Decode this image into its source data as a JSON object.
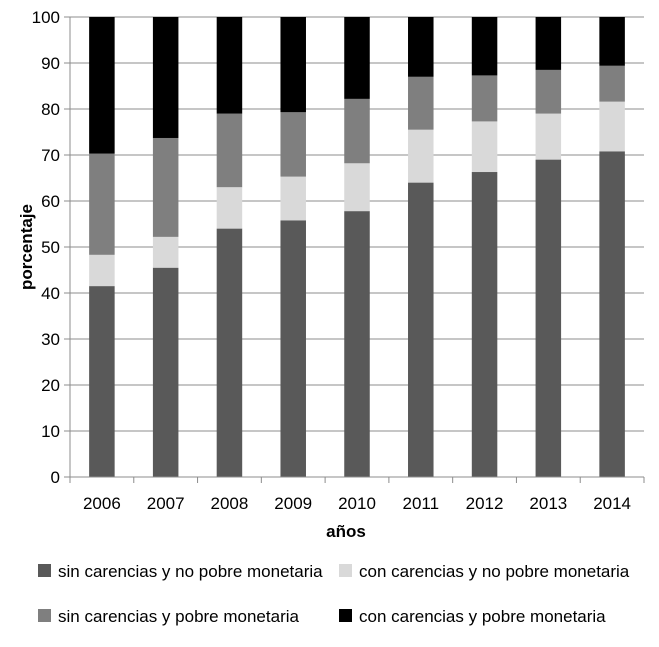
{
  "chart_data": {
    "type": "bar",
    "stacked": true,
    "categories": [
      "2006",
      "2007",
      "2008",
      "2009",
      "2010",
      "2011",
      "2012",
      "2013",
      "2014"
    ],
    "series": [
      {
        "name": "sin carencias y no pobre monetaria",
        "color": "#595959",
        "values": [
          41.5,
          45.5,
          54.0,
          55.8,
          57.8,
          64.0,
          66.3,
          69.0,
          70.8
        ]
      },
      {
        "name": "con carencias y no pobre monetaria",
        "color": "#d9d9d9",
        "values": [
          6.8,
          6.7,
          9.0,
          9.5,
          10.4,
          11.5,
          11.0,
          10.0,
          10.8
        ]
      },
      {
        "name": "sin carencias y pobre monetaria",
        "color": "#7f7f7f",
        "values": [
          22.0,
          21.5,
          16.0,
          14.0,
          14.0,
          11.5,
          10.0,
          9.5,
          7.8
        ]
      },
      {
        "name": "con carencias y pobre monetaria",
        "color": "#000000",
        "values": [
          29.7,
          26.3,
          21.0,
          20.7,
          17.8,
          13.0,
          12.7,
          11.5,
          10.6
        ]
      }
    ],
    "title": "",
    "xlabel": "años",
    "ylabel": "porcentaje",
    "ylim": [
      0,
      100
    ],
    "yticks": [
      0,
      10,
      20,
      30,
      40,
      50,
      60,
      70,
      80,
      90,
      100
    ],
    "grid": true,
    "legend_position": "bottom"
  }
}
